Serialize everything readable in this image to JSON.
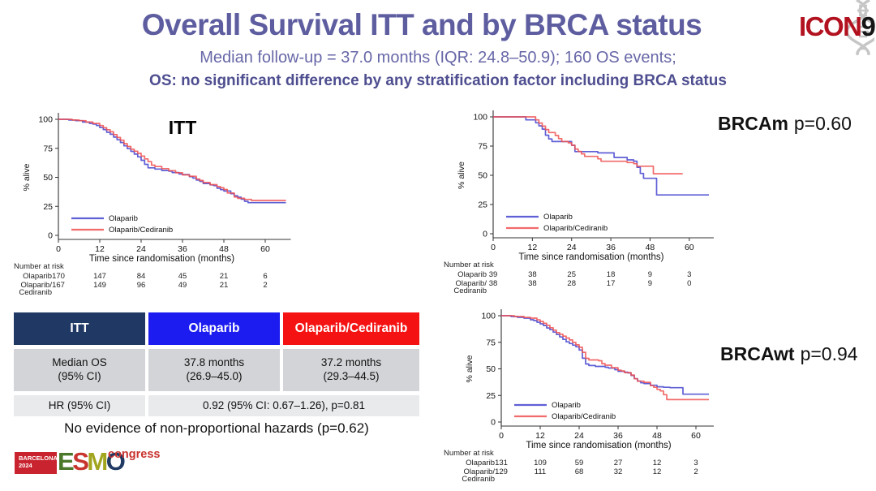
{
  "slide": {
    "title": "Overall Survival ITT and by BRCA status",
    "subtitle": "Median follow-up = 37.0 months (IQR: 24.8–50.9); 160 OS events;",
    "key_message": "OS: no significant difference by any stratification factor including BRCA status",
    "hazards_note": "No evidence of non-proportional hazards (p=0.62)"
  },
  "logos": {
    "icon9": {
      "word": "ICON",
      "number": "9"
    },
    "esmo": {
      "venue_line1": "BARCELONA",
      "venue_line2": "2024",
      "letters": [
        {
          "ch": "E",
          "color": "#4a7729"
        },
        {
          "ch": "S",
          "color": "#c8352f"
        },
        {
          "ch": "M",
          "color": "#a2a51e"
        },
        {
          "ch": "O",
          "color": "#203a63"
        }
      ],
      "congress": "congress"
    }
  },
  "colors": {
    "olaparib": "#4343cf",
    "olaparib_cediranib": "#f05050",
    "table_header_itt": "#203864",
    "table_header_olaparib": "#1c1cf0",
    "table_header_combo": "#f51212",
    "title_text": "#5d5da0"
  },
  "table": {
    "headers": [
      "ITT",
      "Olaparib",
      "Olaparib/Cediranib"
    ],
    "rows": [
      {
        "label": "Median OS\n(95% CI)",
        "olaparib": "37.8 months\n(26.9–45.0)",
        "olaparib_cediranib": "37.2 months\n(29.3–44.5)"
      },
      {
        "label": "HR (95% CI)",
        "merged": "0.92 (95% CI: 0.67–1.26), p=0.81"
      }
    ]
  },
  "chart_data": [
    {
      "id": "itt",
      "type": "line",
      "subtype": "kaplan-meier-step",
      "title": "ITT",
      "xlabel": "Time since randomisation (months)",
      "ylabel": "% alive",
      "x_ticks": [
        0,
        12,
        24,
        36,
        48,
        60
      ],
      "y_ticks": [
        0,
        25,
        50,
        75,
        100
      ],
      "xlim": [
        0,
        66
      ],
      "ylim": [
        0,
        100
      ],
      "legend_position": "lower-left-inside",
      "series": [
        {
          "name": "Olaparib",
          "color": "#4343cf",
          "points": [
            [
              0,
              100
            ],
            [
              3,
              99.4
            ],
            [
              5,
              98.8
            ],
            [
              7,
              97.6
            ],
            [
              9,
              96.5
            ],
            [
              10,
              95.9
            ],
            [
              11,
              94.7
            ],
            [
              12,
              92.9
            ],
            [
              13,
              91.2
            ],
            [
              14,
              88.8
            ],
            [
              15,
              87.1
            ],
            [
              16,
              84.7
            ],
            [
              17,
              82.4
            ],
            [
              18,
              80
            ],
            [
              19,
              77.1
            ],
            [
              20,
              74.7
            ],
            [
              21,
              72.4
            ],
            [
              22,
              70
            ],
            [
              23,
              67.6
            ],
            [
              24,
              64.7
            ],
            [
              25,
              61.2
            ],
            [
              26,
              58.2
            ],
            [
              28,
              57.1
            ],
            [
              30,
              55.9
            ],
            [
              32,
              55.3
            ],
            [
              33,
              54.1
            ],
            [
              35,
              52.9
            ],
            [
              36,
              52.4
            ],
            [
              38,
              50.6
            ],
            [
              39,
              49.4
            ],
            [
              40,
              47.6
            ],
            [
              41,
              46.5
            ],
            [
              42,
              44.7
            ],
            [
              44,
              43.5
            ],
            [
              45,
              42.9
            ],
            [
              46,
              40.6
            ],
            [
              47,
              39.4
            ],
            [
              48,
              38.2
            ],
            [
              50,
              35.9
            ],
            [
              51,
              34.1
            ],
            [
              52,
              32.9
            ],
            [
              53,
              31.2
            ],
            [
              54,
              29.4
            ],
            [
              55,
              28.2
            ],
            [
              66,
              28.2
            ]
          ]
        },
        {
          "name": "Olaparib/Cediranib",
          "color": "#f05050",
          "points": [
            [
              0,
              100
            ],
            [
              4,
              99.4
            ],
            [
              6,
              98.8
            ],
            [
              8,
              97.6
            ],
            [
              10,
              96.4
            ],
            [
              12,
              94.6
            ],
            [
              13,
              92.8
            ],
            [
              14,
              91
            ],
            [
              15,
              89.2
            ],
            [
              16,
              86.8
            ],
            [
              17,
              84.4
            ],
            [
              18,
              82
            ],
            [
              19,
              79
            ],
            [
              20,
              76.6
            ],
            [
              21,
              74.3
            ],
            [
              22,
              72.5
            ],
            [
              23,
              70.7
            ],
            [
              24,
              68.3
            ],
            [
              25,
              65.9
            ],
            [
              26,
              63.5
            ],
            [
              27,
              60.5
            ],
            [
              28,
              59.3
            ],
            [
              30,
              57.5
            ],
            [
              32,
              55.7
            ],
            [
              34,
              53.9
            ],
            [
              36,
              52.1
            ],
            [
              38,
              50.9
            ],
            [
              40,
              48.5
            ],
            [
              41,
              47.3
            ],
            [
              42,
              45.5
            ],
            [
              44,
              43.7
            ],
            [
              46,
              42
            ],
            [
              47,
              41
            ],
            [
              48,
              39.5
            ],
            [
              49,
              36.5
            ],
            [
              51,
              33
            ],
            [
              52,
              31.9
            ],
            [
              54,
              31
            ],
            [
              56,
              30.1
            ],
            [
              66,
              30.1
            ]
          ]
        }
      ],
      "number_at_risk": {
        "header": "Number at risk",
        "rows": [
          {
            "label_lines": [
              "Olaparib"
            ],
            "values": [
              170,
              147,
              84,
              45,
              21,
              6
            ]
          },
          {
            "label_lines": [
              "Olaparib/",
              "Cediranib"
            ],
            "values": [
              167,
              149,
              96,
              49,
              21,
              2
            ]
          }
        ]
      }
    },
    {
      "id": "brcam",
      "type": "line",
      "subtype": "kaplan-meier-step",
      "heading": {
        "group": "BRCAm",
        "pvalue": "p=0.60"
      },
      "xlabel": "Time since randomisation (months)",
      "ylabel": "% alive",
      "x_ticks": [
        0,
        12,
        24,
        36,
        48,
        60
      ],
      "y_ticks": [
        0,
        25,
        50,
        75,
        100
      ],
      "xlim": [
        0,
        66
      ],
      "ylim": [
        0,
        100
      ],
      "legend_position": "lower-left-inside",
      "series": [
        {
          "name": "Olaparib",
          "color": "#4343cf",
          "points": [
            [
              0,
              100
            ],
            [
              10,
              97.4
            ],
            [
              13,
              94.9
            ],
            [
              14,
              92.3
            ],
            [
              15,
              89.5
            ],
            [
              16,
              84.3
            ],
            [
              17,
              81.1
            ],
            [
              18,
              78.9
            ],
            [
              23,
              78.9
            ],
            [
              24,
              75.7
            ],
            [
              25,
              70.3
            ],
            [
              31,
              70.3
            ],
            [
              32,
              69.2
            ],
            [
              36,
              69.2
            ],
            [
              37,
              65.3
            ],
            [
              40,
              65.3
            ],
            [
              41,
              63.2
            ],
            [
              43,
              62.1
            ],
            [
              44,
              56.8
            ],
            [
              45,
              51.6
            ],
            [
              46,
              47.4
            ],
            [
              49,
              47.4
            ],
            [
              50,
              33.2
            ],
            [
              66,
              33.2
            ]
          ]
        },
        {
          "name": "Olaparib/Cediranib",
          "color": "#f05050",
          "points": [
            [
              0,
              100
            ],
            [
              13,
              97.4
            ],
            [
              14,
              94.7
            ],
            [
              15,
              92.1
            ],
            [
              16,
              89.2
            ],
            [
              17,
              86.6
            ],
            [
              19,
              84
            ],
            [
              20,
              81.4
            ],
            [
              21,
              78.9
            ],
            [
              23,
              77.8
            ],
            [
              24,
              75.7
            ],
            [
              25,
              72.5
            ],
            [
              26,
              70.4
            ],
            [
              27,
              68.3
            ],
            [
              28,
              66.2
            ],
            [
              31,
              66.2
            ],
            [
              32,
              64.1
            ],
            [
              33,
              62
            ],
            [
              40,
              62
            ],
            [
              41,
              60.9
            ],
            [
              43,
              59.9
            ],
            [
              44,
              57.8
            ],
            [
              48,
              57.8
            ],
            [
              49,
              51.3
            ],
            [
              58,
              51.3
            ]
          ]
        }
      ],
      "number_at_risk": {
        "header": "Number at risk",
        "rows": [
          {
            "label_lines": [
              "Olaparib"
            ],
            "values": [
              39,
              38,
              25,
              18,
              9,
              3
            ]
          },
          {
            "label_lines": [
              "Olaparib/",
              "Cediranib"
            ],
            "values": [
              38,
              38,
              28,
              17,
              9,
              0
            ]
          }
        ]
      }
    },
    {
      "id": "brcawt",
      "type": "line",
      "subtype": "kaplan-meier-step",
      "heading": {
        "group": "BRCAwt",
        "pvalue": "p=0.94"
      },
      "xlabel": "Time since randomisation (months)",
      "ylabel": "% alive",
      "x_ticks": [
        0,
        12,
        24,
        36,
        48,
        60
      ],
      "y_ticks": [
        0,
        25,
        50,
        75,
        100
      ],
      "xlim": [
        0,
        64
      ],
      "ylim": [
        0,
        100
      ],
      "legend_position": "lower-left-inside",
      "series": [
        {
          "name": "Olaparib",
          "color": "#4343cf",
          "points": [
            [
              0,
              100
            ],
            [
              3,
              99.2
            ],
            [
              5,
              98.5
            ],
            [
              7,
              97.7
            ],
            [
              9,
              96.2
            ],
            [
              10,
              95.4
            ],
            [
              11,
              93.9
            ],
            [
              12,
              92.4
            ],
            [
              13,
              90.8
            ],
            [
              14,
              88.5
            ],
            [
              15,
              86.9
            ],
            [
              16,
              84.6
            ],
            [
              17,
              82.3
            ],
            [
              18,
              80
            ],
            [
              19,
              77.7
            ],
            [
              20,
              75.4
            ],
            [
              21,
              73.8
            ],
            [
              22,
              72.3
            ],
            [
              23,
              70.8
            ],
            [
              24,
              67.7
            ],
            [
              25,
              60
            ],
            [
              26,
              54.6
            ],
            [
              27,
              53.1
            ],
            [
              29,
              52.3
            ],
            [
              32,
              51.5
            ],
            [
              33,
              50.8
            ],
            [
              35,
              49.2
            ],
            [
              36,
              47.7
            ],
            [
              38,
              46.9
            ],
            [
              39,
              46.2
            ],
            [
              40,
              43.8
            ],
            [
              41,
              40.8
            ],
            [
              42,
              38.5
            ],
            [
              43,
              36.9
            ],
            [
              44,
              36.2
            ],
            [
              46,
              34.6
            ],
            [
              48,
              33.1
            ],
            [
              50,
              32.7
            ],
            [
              52,
              32.3
            ],
            [
              55,
              32.3
            ],
            [
              56,
              26.2
            ],
            [
              64,
              26.2
            ]
          ]
        },
        {
          "name": "Olaparib/Cediranib",
          "color": "#f05050",
          "points": [
            [
              0,
              100
            ],
            [
              4,
              99.2
            ],
            [
              7,
              98.4
            ],
            [
              9,
              97.7
            ],
            [
              11,
              96.1
            ],
            [
              12,
              94.6
            ],
            [
              13,
              92.8
            ],
            [
              14,
              91
            ],
            [
              15,
              88.7
            ],
            [
              16,
              86.4
            ],
            [
              17,
              84.1
            ],
            [
              18,
              82.6
            ],
            [
              19,
              80.8
            ],
            [
              20,
              79
            ],
            [
              21,
              77.2
            ],
            [
              22,
              74.9
            ],
            [
              23,
              72.6
            ],
            [
              24,
              70.3
            ],
            [
              25,
              65.6
            ],
            [
              26,
              59.9
            ],
            [
              27,
              58.4
            ],
            [
              30,
              57.6
            ],
            [
              31,
              54.9
            ],
            [
              32,
              53.4
            ],
            [
              34,
              51.1
            ],
            [
              36,
              48.8
            ],
            [
              37,
              48
            ],
            [
              38,
              46.5
            ],
            [
              40,
              44.2
            ],
            [
              41,
              40.7
            ],
            [
              42,
              38.4
            ],
            [
              44,
              37.3
            ],
            [
              46,
              34.2
            ],
            [
              47,
              32.7
            ],
            [
              48,
              30.7
            ],
            [
              49,
              29.2
            ],
            [
              50,
              25.7
            ],
            [
              51,
              21.1
            ],
            [
              64,
              21.1
            ]
          ]
        }
      ],
      "number_at_risk": {
        "header": "Number at risk",
        "rows": [
          {
            "label_lines": [
              "Olaparib"
            ],
            "values": [
              131,
              109,
              59,
              27,
              12,
              3
            ]
          },
          {
            "label_lines": [
              "Olaparib/",
              "Cediranib"
            ],
            "values": [
              129,
              111,
              68,
              32,
              12,
              2
            ]
          }
        ]
      }
    }
  ]
}
